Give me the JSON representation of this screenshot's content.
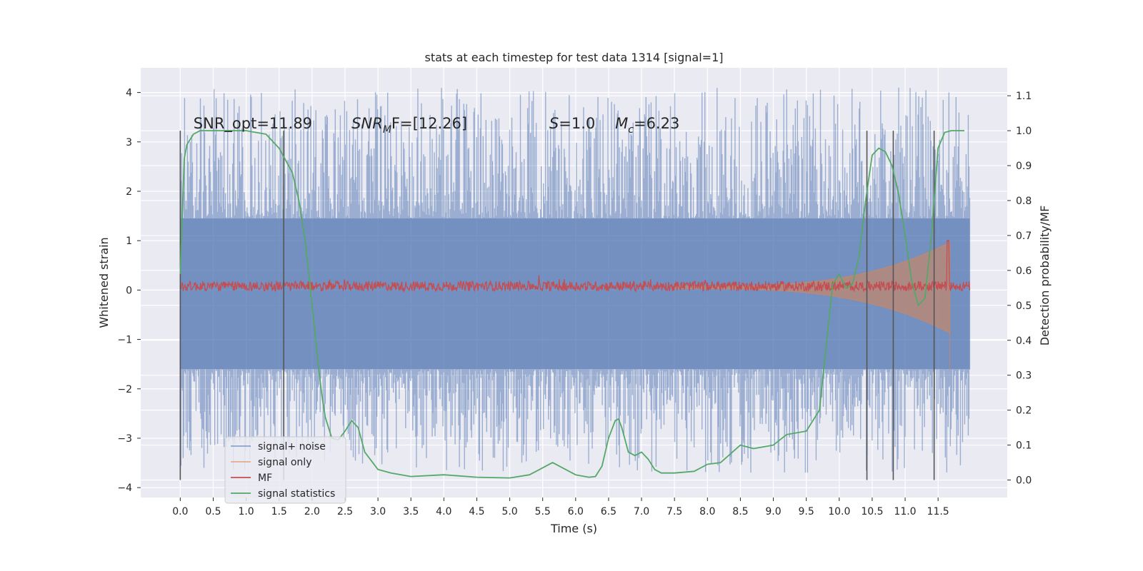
{
  "chart_data": {
    "type": "line",
    "title": "stats at each timestep for test data 1314 [signal=1]",
    "xlabel": "Time (s)",
    "ylabel": "Whitened strain",
    "y2label": "Detection probability/MF",
    "xlim": [
      -0.6,
      12.55
    ],
    "ylim": [
      -4.2,
      4.5
    ],
    "y2lim": [
      -0.05,
      1.18
    ],
    "x_ticks": [
      "0.0",
      "0.5",
      "1.0",
      "1.5",
      "2.0",
      "2.5",
      "3.0",
      "3.5",
      "4.0",
      "4.5",
      "5.0",
      "5.5",
      "6.0",
      "6.5",
      "7.0",
      "7.5",
      "8.0",
      "8.5",
      "9.0",
      "9.5",
      "10.0",
      "10.5",
      "11.0",
      "11.5"
    ],
    "y_ticks": [
      "4",
      "3",
      "2",
      "1",
      "0",
      "−1",
      "−2",
      "−3",
      "−4"
    ],
    "y2_ticks": [
      "1.1",
      "1.0",
      "0.9",
      "0.8",
      "0.7",
      "0.6",
      "0.5",
      "0.4",
      "0.3",
      "0.2",
      "0.1",
      "0.0"
    ],
    "grid": true,
    "legend_position": "lower-left",
    "colors": {
      "noise": "#4c72b0",
      "signal": "#dd8452",
      "mf": "#c44e52",
      "stats": "#55a868",
      "background": "#eaeaf2",
      "vline": "#555555"
    },
    "annotations": {
      "snr_opt": "SNR_opt=11.89",
      "snr_mf_main": "SNR",
      "snr_mf_sub": "M",
      "snr_mf_rest": "F=[12.26]",
      "s_main": "S",
      "s_rest": "=1.0",
      "mc_main": "M",
      "mc_sub": "c",
      "mc_rest": "=6.23"
    },
    "detection_vlines_x": [
      0.0,
      1.57,
      10.42,
      10.82,
      11.44
    ],
    "series": [
      {
        "name": "signal+ noise",
        "axis": "left",
        "x_range": [
          0.0,
          11.98
        ],
        "band": [
          -1.6,
          1.45
        ],
        "spike_max": 4.1,
        "spike_min": -3.7
      },
      {
        "name": "signal only",
        "axis": "left",
        "x_range": [
          7.5,
          11.68
        ],
        "envelope_end": 0.9,
        "spike_top": 1.0,
        "spike_bottom": -1.62
      },
      {
        "name": "MF",
        "axis": "left",
        "x_range": [
          0.0,
          11.98
        ],
        "baseline": 0.08,
        "amplitude": 0.1,
        "spike_x": 11.65,
        "spike_y": 1.0
      },
      {
        "name": "signal statistics",
        "axis": "right",
        "x": [
          0.0,
          0.06,
          0.1,
          0.2,
          0.3,
          0.5,
          1.0,
          1.3,
          1.5,
          1.7,
          1.8,
          1.9,
          2.0,
          2.1,
          2.15,
          2.2,
          2.3,
          2.4,
          2.5,
          2.6,
          2.7,
          2.8,
          3.0,
          3.2,
          3.5,
          4.0,
          4.5,
          5.0,
          5.3,
          5.5,
          5.65,
          5.8,
          6.0,
          6.2,
          6.3,
          6.4,
          6.5,
          6.6,
          6.65,
          6.7,
          6.8,
          6.9,
          7.0,
          7.1,
          7.2,
          7.3,
          7.5,
          7.8,
          8.0,
          8.2,
          8.5,
          8.7,
          9.0,
          9.2,
          9.5,
          9.7,
          9.8,
          9.9,
          10.0,
          10.1,
          10.2,
          10.3,
          10.4,
          10.5,
          10.6,
          10.7,
          10.8,
          10.9,
          11.0,
          11.1,
          11.2,
          11.3,
          11.4,
          11.5,
          11.6,
          11.7,
          11.8,
          11.9
        ],
        "y": [
          0.59,
          0.92,
          0.96,
          0.99,
          1.0,
          1.0,
          1.0,
          0.99,
          0.95,
          0.88,
          0.8,
          0.68,
          0.5,
          0.32,
          0.24,
          0.18,
          0.12,
          0.115,
          0.14,
          0.17,
          0.15,
          0.08,
          0.03,
          0.02,
          0.01,
          0.015,
          0.008,
          0.006,
          0.015,
          0.035,
          0.05,
          0.035,
          0.015,
          0.008,
          0.01,
          0.04,
          0.12,
          0.17,
          0.175,
          0.15,
          0.08,
          0.07,
          0.08,
          0.06,
          0.03,
          0.02,
          0.02,
          0.025,
          0.045,
          0.05,
          0.1,
          0.09,
          0.1,
          0.13,
          0.14,
          0.2,
          0.38,
          0.56,
          0.59,
          0.55,
          0.56,
          0.64,
          0.8,
          0.93,
          0.95,
          0.94,
          0.9,
          0.82,
          0.7,
          0.57,
          0.5,
          0.52,
          0.7,
          0.95,
          0.995,
          1.0,
          1.0,
          1.0
        ]
      }
    ]
  }
}
